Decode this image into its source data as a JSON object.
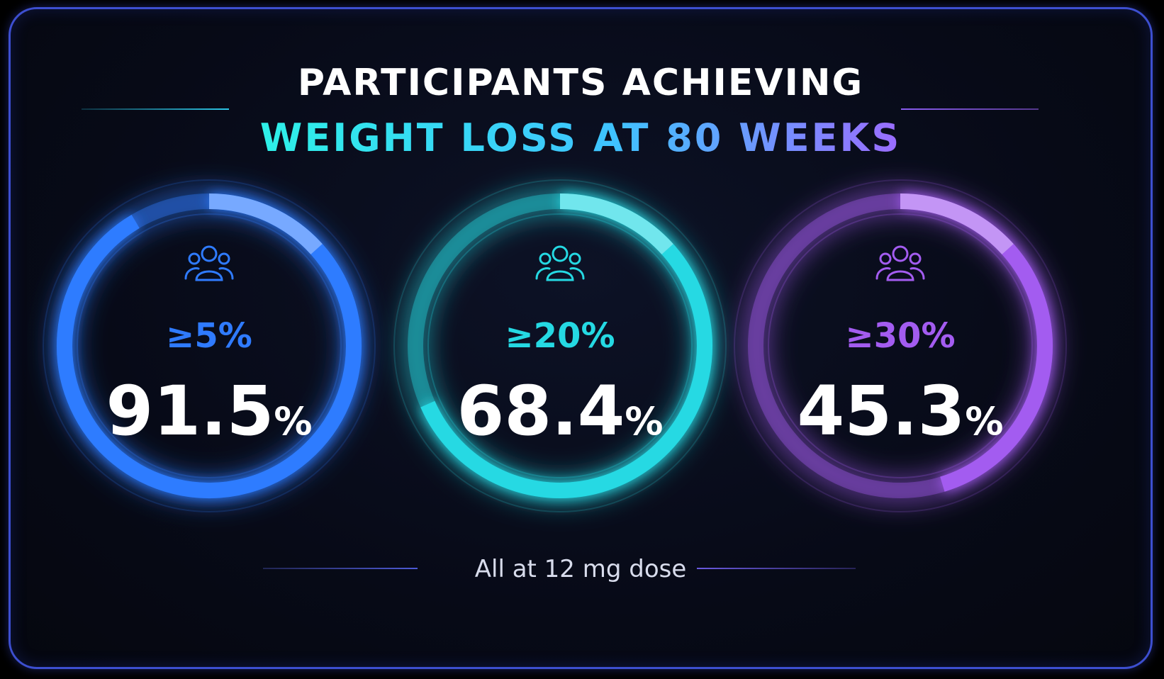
{
  "title": {
    "line1": "PARTICIPANTS ACHIEVING",
    "line2": "WEIGHT LOSS AT 80 WEEKS"
  },
  "footnote": "All at 12 mg dose",
  "colors": {
    "background": "#070a17",
    "blue": "#2f7bff",
    "cyan": "#25d9e3",
    "purple": "#a35cf0",
    "white": "#ffffff"
  },
  "chart_data": {
    "type": "donut",
    "title": "PARTICIPANTS ACHIEVING WEIGHT LOSS AT 80 WEEKS",
    "series": [
      {
        "name": "≥5%",
        "value": 91.5,
        "unit": "%",
        "color": "#2f7bff",
        "icon": "people-group-icon"
      },
      {
        "name": "≥20%",
        "value": 68.4,
        "unit": "%",
        "color": "#25d9e3",
        "icon": "people-group-icon"
      },
      {
        "name": "≥30%",
        "value": 45.3,
        "unit": "%",
        "color": "#a35cf0",
        "icon": "people-group-icon"
      }
    ]
  },
  "metrics": [
    {
      "threshold": "≥5%",
      "number": "91.5",
      "unit": "%"
    },
    {
      "threshold": "≥20%",
      "number": "68.4",
      "unit": "%"
    },
    {
      "threshold": "≥30%",
      "number": "45.3",
      "unit": "%"
    }
  ]
}
